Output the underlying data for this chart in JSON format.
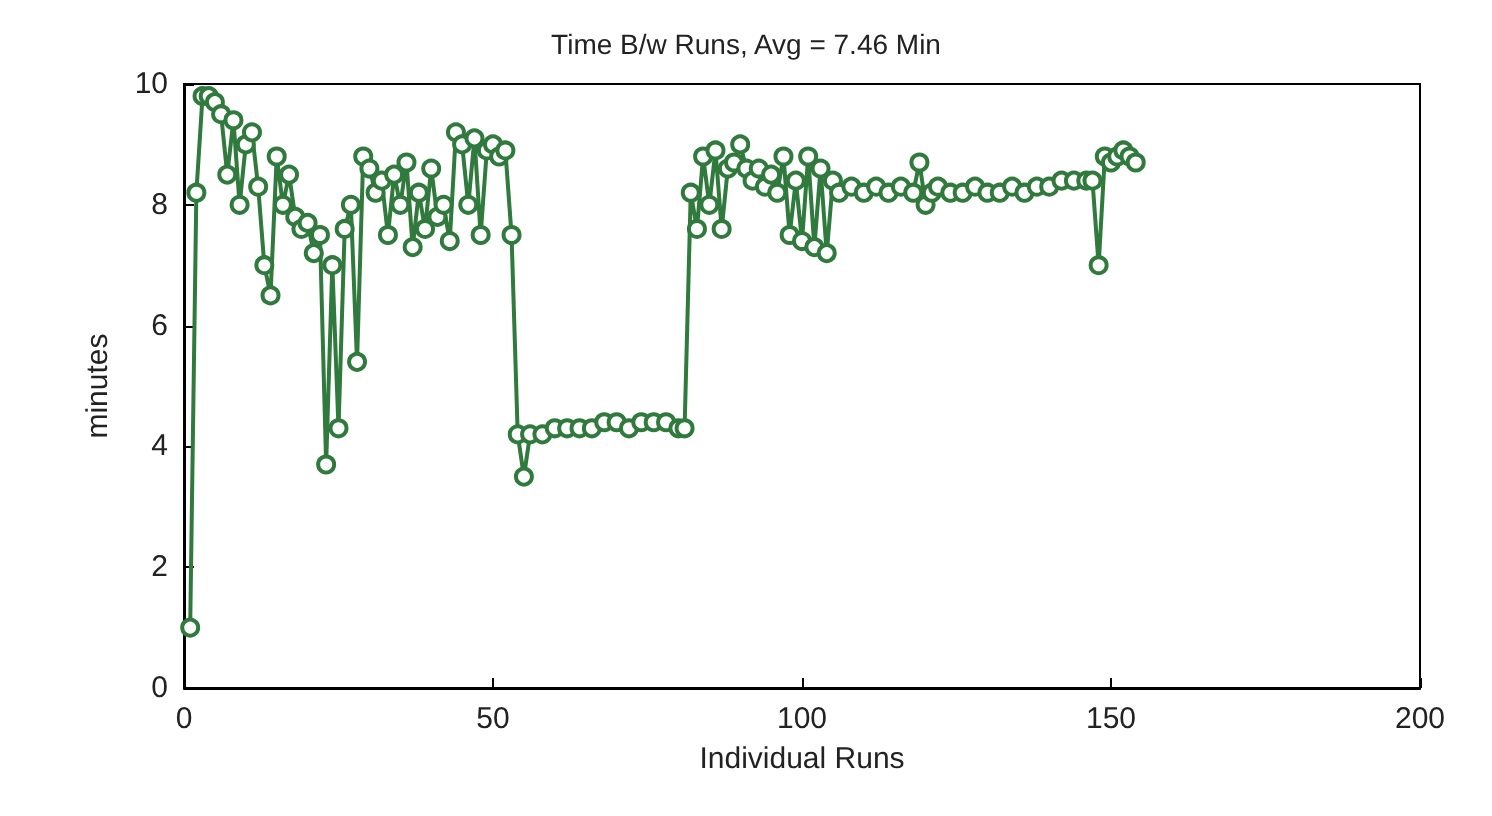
{
  "chart_data": {
    "type": "line",
    "title": "Time B/w Runs, Avg = 7.46 Min",
    "xlabel": "Individual Runs",
    "ylabel": "minutes",
    "x": [
      1,
      2,
      3,
      4,
      5,
      6,
      7,
      8,
      9,
      10,
      11,
      12,
      13,
      14,
      15,
      16,
      17,
      18,
      19,
      20,
      21,
      22,
      23,
      24,
      25,
      26,
      27,
      28,
      29,
      30,
      31,
      32,
      33,
      34,
      35,
      36,
      37,
      38,
      39,
      40,
      41,
      42,
      43,
      44,
      45,
      46,
      47,
      48,
      49,
      50,
      51,
      52,
      53,
      54,
      55,
      56,
      58,
      60,
      62,
      64,
      66,
      68,
      70,
      72,
      74,
      76,
      78,
      80,
      81,
      82,
      83,
      84,
      85,
      86,
      87,
      88,
      89,
      90,
      91,
      92,
      93,
      94,
      95,
      96,
      97,
      98,
      99,
      100,
      101,
      102,
      103,
      104,
      105,
      106,
      108,
      110,
      112,
      114,
      116,
      118,
      119,
      120,
      121,
      122,
      124,
      126,
      128,
      130,
      132,
      134,
      136,
      138,
      140,
      142,
      144,
      146,
      147,
      148,
      149,
      150,
      151,
      152,
      153,
      154
    ],
    "series": [
      {
        "color": "#2f7a3c",
        "values": [
          1.0,
          8.2,
          9.8,
          9.8,
          9.7,
          9.5,
          8.5,
          9.4,
          8.0,
          9.0,
          9.2,
          8.3,
          7.0,
          6.5,
          8.8,
          8.0,
          8.5,
          7.8,
          7.6,
          7.7,
          7.2,
          7.5,
          3.7,
          7.0,
          4.3,
          7.6,
          8.0,
          5.4,
          8.8,
          8.6,
          8.2,
          8.4,
          7.5,
          8.5,
          8.0,
          8.7,
          7.3,
          8.2,
          7.6,
          8.6,
          7.8,
          8.0,
          7.4,
          9.2,
          9.0,
          8.0,
          9.1,
          7.5,
          8.9,
          9.0,
          8.8,
          8.9,
          7.5,
          4.2,
          3.5,
          4.2,
          4.2,
          4.3,
          4.3,
          4.3,
          4.3,
          4.4,
          4.4,
          4.3,
          4.4,
          4.4,
          4.4,
          4.3,
          4.3,
          8.2,
          7.6,
          8.8,
          8.0,
          8.9,
          7.6,
          8.6,
          8.7,
          9.0,
          8.6,
          8.4,
          8.6,
          8.3,
          8.5,
          8.2,
          8.8,
          7.5,
          8.4,
          7.4,
          8.8,
          7.3,
          8.6,
          7.2,
          8.4,
          8.2,
          8.3,
          8.2,
          8.3,
          8.2,
          8.3,
          8.2,
          8.7,
          8.0,
          8.2,
          8.3,
          8.2,
          8.2,
          8.3,
          8.2,
          8.2,
          8.3,
          8.2,
          8.3,
          8.3,
          8.4,
          8.4,
          8.4,
          8.4,
          7.0,
          8.8,
          8.7,
          8.8,
          8.9,
          8.8,
          8.7
        ]
      }
    ],
    "xlim": [
      0,
      200
    ],
    "xticks": [
      0,
      50,
      100,
      150,
      200
    ],
    "ylim": [
      0,
      10
    ],
    "yticks": [
      0,
      2,
      4,
      6,
      8,
      10
    ],
    "grid": false,
    "marker": "circle",
    "line_style": "solid"
  }
}
